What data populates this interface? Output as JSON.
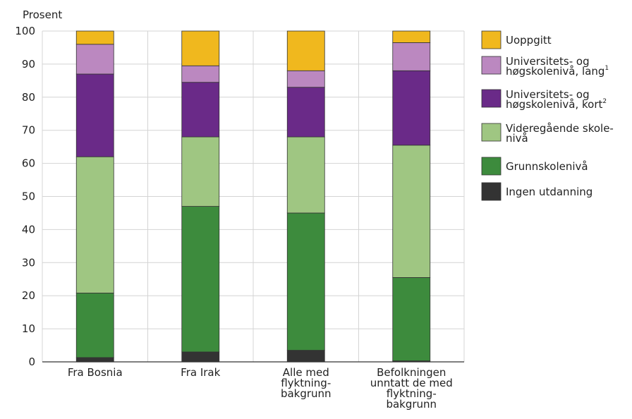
{
  "chart_data": {
    "type": "bar",
    "stacked": true,
    "ylabel": "Prosent",
    "ylim": [
      0,
      100
    ],
    "yticks": [
      0,
      10,
      20,
      30,
      40,
      50,
      60,
      70,
      80,
      90,
      100
    ],
    "grid": true,
    "legend_position": "right",
    "categories": [
      [
        "Fra Bosnia"
      ],
      [
        "Fra Irak"
      ],
      [
        "Alle med",
        "flyktning-",
        "bakgrunn"
      ],
      [
        "Befolkningen",
        "unntatt de med",
        "flyktning-",
        "bakgrunn"
      ]
    ],
    "series": [
      {
        "name": "Ingen utdanning",
        "color": "#333333",
        "values": [
          1.3,
          3.0,
          3.5,
          0.3
        ]
      },
      {
        "name": "Grunnskolenivå",
        "color": "#3d8b3d",
        "values": [
          19.5,
          44.0,
          41.5,
          25.2
        ]
      },
      {
        "name": "Videregående skolenivå",
        "color": "#9fc682",
        "values": [
          41.2,
          21.0,
          23.0,
          40.0
        ]
      },
      {
        "name": "Universitets- og høgskolenivå, kort",
        "color": "#6a2a88",
        "values": [
          25.0,
          16.5,
          15.0,
          22.5
        ]
      },
      {
        "name": "Universitets- og høgskolenivå, lang",
        "color": "#bb88c0",
        "values": [
          9.0,
          5.0,
          5.0,
          8.5
        ]
      },
      {
        "name": "Uoppgitt",
        "color": "#f0b81e",
        "values": [
          4.0,
          10.5,
          12.0,
          3.5
        ]
      }
    ],
    "legend": [
      {
        "lines": [
          "Uoppgitt"
        ],
        "sup": "",
        "color": "#f0b81e"
      },
      {
        "lines": [
          "Universitets- og",
          "høgskolenivå, lang"
        ],
        "sup": "1",
        "color": "#bb88c0"
      },
      {
        "lines": [
          "Universitets- og",
          "høgskolenivå, kort"
        ],
        "sup": "2",
        "color": "#6a2a88"
      },
      {
        "lines": [
          "Videregående skole-",
          "nivå"
        ],
        "sup": "",
        "color": "#9fc682"
      },
      {
        "lines": [
          "Grunnskolenivå"
        ],
        "sup": "",
        "color": "#3d8b3d"
      },
      {
        "lines": [
          "Ingen utdanning"
        ],
        "sup": "",
        "color": "#333333"
      }
    ]
  }
}
